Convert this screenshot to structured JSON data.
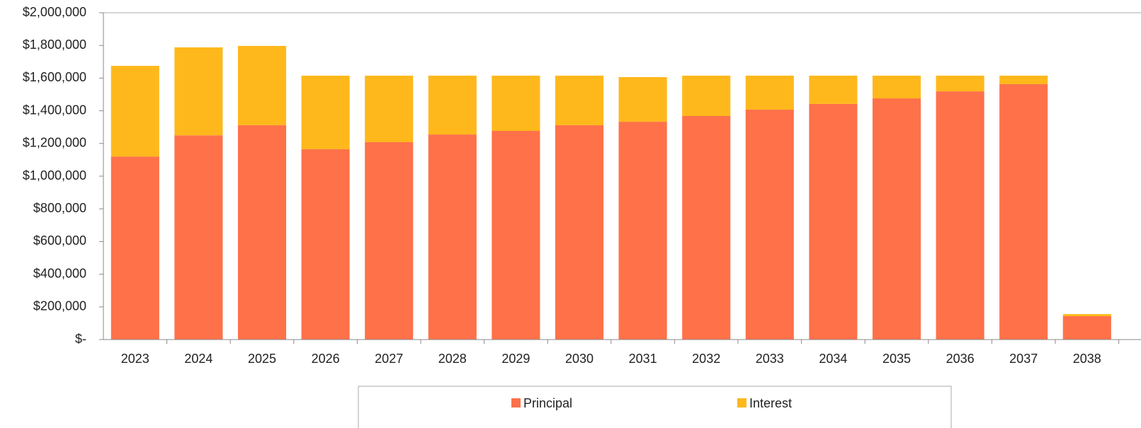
{
  "chart_data": {
    "type": "stacked_bar",
    "categories": [
      "2023",
      "2024",
      "2025",
      "2026",
      "2027",
      "2028",
      "2029",
      "2030",
      "2031",
      "2032",
      "2033",
      "2034",
      "2035",
      "2036",
      "2037",
      "2038"
    ],
    "series": [
      {
        "name": "Principal",
        "color": "#ff7149",
        "values": [
          1120000,
          1250000,
          1312000,
          1165000,
          1208000,
          1255000,
          1277000,
          1312000,
          1333000,
          1368000,
          1407000,
          1442000,
          1476000,
          1519000,
          1563000,
          143000
        ]
      },
      {
        "name": "Interest",
        "color": "#ffb81c",
        "values": [
          555000,
          538000,
          485000,
          450000,
          407000,
          360000,
          338000,
          303000,
          273000,
          247000,
          208000,
          173000,
          139000,
          96000,
          52000,
          13000
        ]
      }
    ],
    "ylim": [
      0,
      2000000
    ],
    "yticks": [
      {
        "value": 0,
        "label": "$-"
      },
      {
        "value": 200000,
        "label": "$200,000"
      },
      {
        "value": 400000,
        "label": "$400,000"
      },
      {
        "value": 600000,
        "label": "$600,000"
      },
      {
        "value": 800000,
        "label": "$800,000"
      },
      {
        "value": 1000000,
        "label": "$1,000,000"
      },
      {
        "value": 1200000,
        "label": "$1,200,000"
      },
      {
        "value": 1400000,
        "label": "$1,400,000"
      },
      {
        "value": 1600000,
        "label": "$1,600,000"
      },
      {
        "value": 1800000,
        "label": "$1,800,000"
      },
      {
        "value": 2000000,
        "label": "$2,000,000"
      }
    ],
    "legend": "bottom"
  }
}
